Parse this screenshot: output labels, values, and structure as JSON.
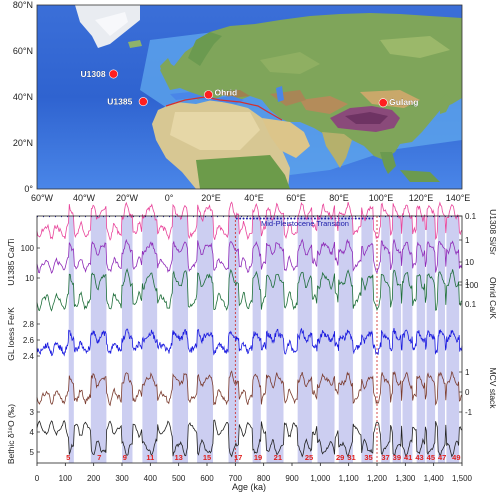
{
  "map": {
    "lat_labels": [
      "80°N",
      "60°N",
      "40°N",
      "20°N",
      "0°"
    ],
    "lon_labels": [
      "60°W",
      "40°W",
      "20°W",
      "0°",
      "20°E",
      "40°E",
      "60°E",
      "80°E",
      "100°E",
      "120°E",
      "140°E"
    ],
    "sites": [
      {
        "name": "U1308",
        "lon": -24,
        "lat": 50
      },
      {
        "name": "U1385",
        "lon": -10,
        "lat": 38
      },
      {
        "name": "Ohrid",
        "lon": 20.7,
        "lat": 41
      },
      {
        "name": "Gulang",
        "lon": 102.9,
        "lat": 37.5
      }
    ],
    "site_color": "#ff1f1f"
  },
  "chart_data": {
    "type": "line",
    "x_axis": {
      "label": "Age (ka)",
      "range": [
        0,
        1500
      ],
      "tick_labels": [
        "0",
        "100",
        "200",
        "300",
        "400",
        "500",
        "600",
        "700",
        "800",
        "900",
        "1,000",
        "1,100",
        "1,200",
        "1,300",
        "1,400",
        "1,500"
      ]
    },
    "annotation": "Mid-Pleistocene Transition",
    "mpt_bounds": [
      700,
      1200
    ],
    "interglacial_labels": [
      "5",
      "7",
      "9",
      "11",
      "13",
      "15",
      "17",
      "19",
      "21",
      "25",
      "29",
      "31",
      "35",
      "37",
      "39",
      "41",
      "43",
      "45",
      "47",
      "49"
    ],
    "interglacial_ages": [
      110,
      220,
      310,
      400,
      500,
      600,
      710,
      780,
      850,
      960,
      1070,
      1110,
      1170,
      1230,
      1270,
      1310,
      1350,
      1390,
      1430,
      1480
    ],
    "interglacials": [
      [
        112,
        130
      ],
      [
        190,
        245
      ],
      [
        300,
        337
      ],
      [
        372,
        424
      ],
      [
        478,
        533
      ],
      [
        565,
        621
      ],
      [
        676,
        712
      ],
      [
        761,
        790
      ],
      [
        810,
        870
      ],
      [
        920,
        970
      ],
      [
        990,
        1050
      ],
      [
        1065,
        1115
      ],
      [
        1145,
        1185
      ],
      [
        1215,
        1245
      ],
      [
        1255,
        1285
      ],
      [
        1290,
        1325
      ],
      [
        1340,
        1370
      ],
      [
        1375,
        1405
      ],
      [
        1415,
        1440
      ],
      [
        1445,
        1490
      ]
    ],
    "band_color": "#c3c6ee",
    "series": [
      {
        "name": "U1385 Ca/Ti",
        "color": "#e8449a",
        "left_ticks": [
          "100",
          "10"
        ]
      },
      {
        "name": "U1308 Si/Sr",
        "color": "#8e2bb8",
        "right_ticks": [
          "0.1",
          "1",
          "10",
          "100"
        ]
      },
      {
        "name": "Ohrid Ca/K",
        "color": "#1e6e3a",
        "right_ticks": [
          "1",
          "0.1"
        ]
      },
      {
        "name": "GL loess Fe/K",
        "color": "#1a1adf",
        "left_ticks": [
          "2.8",
          "2.6",
          "2.4"
        ]
      },
      {
        "name": "MCV stack",
        "color": "#7a3b2e",
        "right_ticks": [
          "1",
          "0",
          "-1"
        ]
      },
      {
        "name": "Bethic δ¹⁸O (‰)",
        "color": "#222222",
        "left_ticks": [
          "3",
          "4",
          "5"
        ]
      }
    ]
  }
}
